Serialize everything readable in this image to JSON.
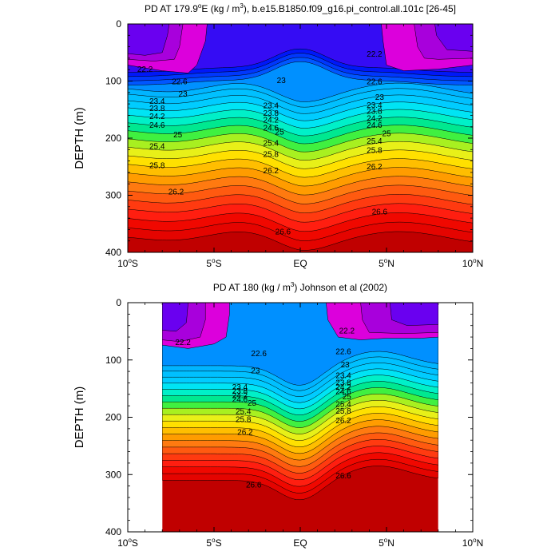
{
  "chart_data": [
    {
      "type": "contour",
      "title": "PD AT 179.9°E (kg / m³), b.e15.B1850.f09_g16.pi_control.all.101c [26-45]",
      "title_parts": {
        "pre": "PD AT 179.9",
        "deg": "o",
        "mid": "E (kg / m",
        "sup": "3",
        "post": "), b.e15.B1850.f09_g16.pi_control.all.101c [26-45]"
      },
      "ylabel": "DEPTH (m)",
      "xlim": [
        -10,
        10
      ],
      "ylim": [
        0,
        400
      ],
      "x_ticks": [
        {
          "pre": "10",
          "sup": "o",
          "post": "S",
          "x": -10
        },
        {
          "pre": "5",
          "sup": "o",
          "post": "S",
          "x": -5
        },
        {
          "pre": "EQ",
          "sup": "",
          "post": "",
          "x": 0
        },
        {
          "pre": "5",
          "sup": "o",
          "post": "N",
          "x": 5
        },
        {
          "pre": "10",
          "sup": "o",
          "post": "N",
          "x": 10
        }
      ],
      "y_ticks": [
        "0",
        "100",
        "200",
        "300",
        "400"
      ],
      "data_x_range": [
        -10,
        10
      ],
      "contour_labels": [
        {
          "text": "22.2",
          "x": -9.0,
          "y": 78
        },
        {
          "text": "22.6",
          "x": -7.0,
          "y": 100
        },
        {
          "text": "23",
          "x": -6.8,
          "y": 122
        },
        {
          "text": "23.4",
          "x": -8.3,
          "y": 134
        },
        {
          "text": "23.8",
          "x": -8.3,
          "y": 147
        },
        {
          "text": "24.2",
          "x": -8.3,
          "y": 161
        },
        {
          "text": "24.6",
          "x": -8.3,
          "y": 176
        },
        {
          "text": "25",
          "x": -7.1,
          "y": 193
        },
        {
          "text": "25.4",
          "x": -8.3,
          "y": 213
        },
        {
          "text": "25.8",
          "x": -8.3,
          "y": 247
        },
        {
          "text": "26.2",
          "x": -7.2,
          "y": 293
        },
        {
          "text": "23",
          "x": -1.1,
          "y": 98
        },
        {
          "text": "23.4",
          "x": -1.7,
          "y": 142
        },
        {
          "text": "23.8",
          "x": -1.7,
          "y": 155
        },
        {
          "text": "24.2",
          "x": -1.7,
          "y": 167
        },
        {
          "text": "24.6",
          "x": -1.7,
          "y": 181
        },
        {
          "text": "25",
          "x": -1.2,
          "y": 188
        },
        {
          "text": "25.4",
          "x": -1.7,
          "y": 208
        },
        {
          "text": "25.8",
          "x": -1.7,
          "y": 227
        },
        {
          "text": "26.2",
          "x": -1.7,
          "y": 256
        },
        {
          "text": "26.6",
          "x": -1.0,
          "y": 363
        },
        {
          "text": "22.2",
          "x": 4.3,
          "y": 52
        },
        {
          "text": "22.6",
          "x": 4.3,
          "y": 100
        },
        {
          "text": "23",
          "x": 4.6,
          "y": 127
        },
        {
          "text": "23.4",
          "x": 4.3,
          "y": 141
        },
        {
          "text": "23.8",
          "x": 4.3,
          "y": 152
        },
        {
          "text": "24.2",
          "x": 4.3,
          "y": 164
        },
        {
          "text": "24.6",
          "x": 4.3,
          "y": 176
        },
        {
          "text": "25",
          "x": 5.0,
          "y": 191
        },
        {
          "text": "25.4",
          "x": 4.3,
          "y": 204
        },
        {
          "text": "25.8",
          "x": 4.3,
          "y": 220
        },
        {
          "text": "26.2",
          "x": 4.3,
          "y": 249
        },
        {
          "text": "26.6",
          "x": 4.6,
          "y": 328
        }
      ],
      "surfaces": [
        {
          "level": 21.0,
          "pts": [
            [
              -10,
              72
            ],
            [
              -8,
              82
            ],
            [
              -6.5,
              86
            ],
            [
              -6,
              72
            ],
            [
              -5.5,
              30
            ],
            [
              -5.4,
              0
            ],
            [
              4.7,
              0
            ],
            [
              4.8,
              30
            ],
            [
              5,
              72
            ],
            [
              6,
              82
            ],
            [
              8,
              79
            ],
            [
              10,
              72
            ]
          ]
        },
        {
          "level": 21.4,
          "pts": [
            [
              -10,
              62
            ],
            [
              -8.5,
              65
            ],
            [
              -7.3,
              62
            ],
            [
              -7,
              40
            ],
            [
              -6.8,
              0
            ],
            [
              6.6,
              0
            ],
            [
              6.8,
              40
            ],
            [
              7.2,
              60
            ],
            [
              8,
              62
            ],
            [
              10,
              60
            ]
          ]
        },
        {
          "level": 21.8,
          "pts": [
            [
              -10,
              52
            ],
            [
              -9,
              55
            ],
            [
              -8,
              50
            ],
            [
              -7.7,
              20
            ],
            [
              -7.6,
              0
            ],
            [
              7.8,
              0
            ],
            [
              7.9,
              20
            ],
            [
              8.5,
              45
            ],
            [
              10,
              48
            ]
          ]
        }
      ]
    },
    {
      "type": "contour",
      "title": "PD AT 180 (kg / m³) Johnson et al (2002)",
      "title_parts": {
        "pre": "PD AT 180 (kg / m",
        "sup": "3",
        "post": ") Johnson et al (2002)"
      },
      "ylabel": "DEPTH (m)",
      "xlim": [
        -10,
        10
      ],
      "ylim": [
        0,
        400
      ],
      "x_ticks": [
        {
          "pre": "10",
          "sup": "o",
          "post": "S",
          "x": -10
        },
        {
          "pre": "5",
          "sup": "o",
          "post": "S",
          "x": -5
        },
        {
          "pre": "EQ",
          "sup": "",
          "post": "",
          "x": 0
        },
        {
          "pre": "5",
          "sup": "o",
          "post": "N",
          "x": 5
        },
        {
          "pre": "10",
          "sup": "o",
          "post": "N",
          "x": 10
        }
      ],
      "y_ticks": [
        "0",
        "100",
        "200",
        "300",
        "400"
      ],
      "data_x_range": [
        -8,
        8
      ],
      "contour_labels": [
        {
          "text": "22.2",
          "x": -6.8,
          "y": 68
        },
        {
          "text": "22.6",
          "x": -2.4,
          "y": 88
        },
        {
          "text": "23",
          "x": -2.6,
          "y": 118
        },
        {
          "text": "23.4",
          "x": -3.5,
          "y": 146
        },
        {
          "text": "23.8",
          "x": -3.5,
          "y": 153
        },
        {
          "text": "24.2",
          "x": -3.5,
          "y": 161
        },
        {
          "text": "24.6",
          "x": -3.5,
          "y": 168
        },
        {
          "text": "25",
          "x": -2.8,
          "y": 174
        },
        {
          "text": "25.4",
          "x": -3.3,
          "y": 189
        },
        {
          "text": "25.8",
          "x": -3.3,
          "y": 203
        },
        {
          "text": "26.2",
          "x": -3.2,
          "y": 225
        },
        {
          "text": "26.6",
          "x": -2.7,
          "y": 317
        },
        {
          "text": "22.2",
          "x": 2.7,
          "y": 48
        },
        {
          "text": "22.6",
          "x": 2.5,
          "y": 84
        },
        {
          "text": "23",
          "x": 2.6,
          "y": 107
        },
        {
          "text": "23.4",
          "x": 2.5,
          "y": 126
        },
        {
          "text": "23.8",
          "x": 2.5,
          "y": 139
        },
        {
          "text": "24.2",
          "x": 2.5,
          "y": 146
        },
        {
          "text": "24.6",
          "x": 2.5,
          "y": 154
        },
        {
          "text": "25",
          "x": 2.7,
          "y": 163
        },
        {
          "text": "25.4",
          "x": 2.5,
          "y": 176
        },
        {
          "text": "25.8",
          "x": 2.5,
          "y": 188
        },
        {
          "text": "26.2",
          "x": 2.5,
          "y": 205
        },
        {
          "text": "26.6",
          "x": 2.5,
          "y": 301
        }
      ],
      "surfaces": [
        {
          "level": 21.0,
          "pts": [
            [
              -8,
              74
            ],
            [
              -6.5,
              80
            ],
            [
              -5,
              72
            ],
            [
              -4.3,
              60
            ],
            [
              -4.1,
              20
            ],
            [
              -4.1,
              0
            ],
            [
              1.5,
              0
            ],
            [
              1.6,
              30
            ],
            [
              2.2,
              60
            ],
            [
              3.5,
              65
            ],
            [
              5,
              62
            ],
            [
              7,
              62
            ],
            [
              8,
              60
            ]
          ]
        },
        {
          "level": 21.4,
          "pts": [
            [
              -8,
              65
            ],
            [
              -7,
              68
            ],
            [
              -5.8,
              60
            ],
            [
              -5.5,
              30
            ],
            [
              -5.5,
              0
            ],
            [
              3.5,
              0
            ],
            [
              3.6,
              30
            ],
            [
              4,
              52
            ],
            [
              6,
              54
            ],
            [
              8,
              52
            ]
          ]
        },
        {
          "level": 21.8,
          "pts": [
            [
              -8,
              48
            ],
            [
              -7.2,
              50
            ],
            [
              -6.6,
              35
            ],
            [
              -6.5,
              0
            ],
            [
              5.2,
              0
            ],
            [
              5.3,
              30
            ],
            [
              6.2,
              40
            ],
            [
              8,
              38
            ]
          ]
        }
      ]
    }
  ]
}
